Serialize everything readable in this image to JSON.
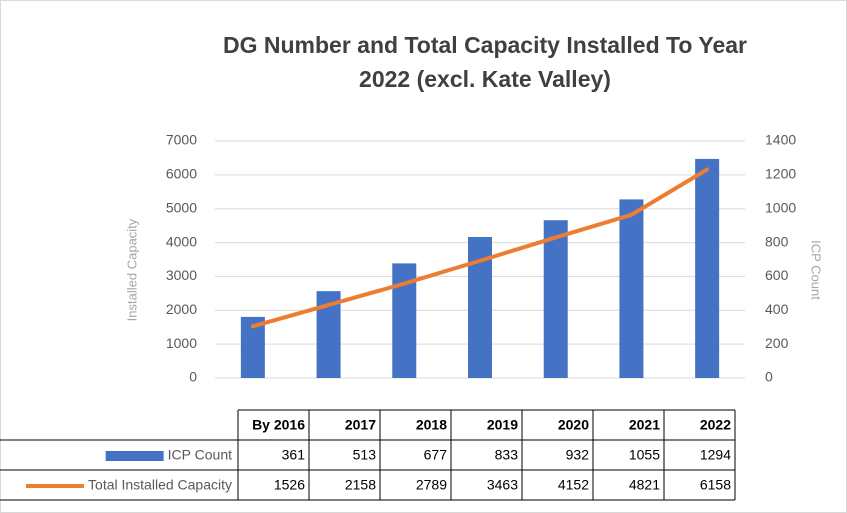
{
  "chart_data": {
    "type": "bar_line",
    "title": "DG Number and Total Capacity Installed To Year 2022 (excl. Kate Valley)",
    "ylabel": "Installed Capacity",
    "y2label": "ICP Count",
    "categories": [
      "By 2016",
      "2017",
      "2018",
      "2019",
      "2020",
      "2021",
      "2022"
    ],
    "series": [
      {
        "name": "ICP Count",
        "type": "bar",
        "axis": "y2",
        "color": "#4472c4",
        "values": [
          361,
          513,
          677,
          833,
          932,
          1055,
          1294
        ]
      },
      {
        "name": "Total Installed Capacity",
        "type": "line",
        "axis": "y",
        "color": "#ed7d31",
        "values": [
          1526,
          2158,
          2789,
          3463,
          4152,
          4821,
          6158
        ]
      }
    ],
    "ylim": [
      0,
      7000
    ],
    "yticks": [
      0,
      1000,
      2000,
      3000,
      4000,
      5000,
      6000,
      7000
    ],
    "y2lim": [
      0,
      1400
    ],
    "y2ticks": [
      0,
      200,
      400,
      600,
      800,
      1000,
      1200,
      1400
    ],
    "grid": true
  }
}
